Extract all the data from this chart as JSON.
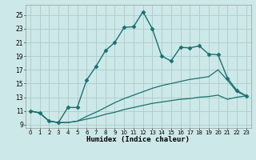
{
  "xlabel": "Humidex (Indice chaleur)",
  "background_color": "#cde8e8",
  "grid_color": "#aacccc",
  "line_color": "#1a7070",
  "xlim": [
    -0.5,
    23.5
  ],
  "ylim": [
    8.5,
    26.5
  ],
  "xticks": [
    0,
    1,
    2,
    3,
    4,
    5,
    6,
    7,
    8,
    9,
    10,
    11,
    12,
    13,
    14,
    15,
    16,
    17,
    18,
    19,
    20,
    21,
    22,
    23
  ],
  "yticks": [
    9,
    11,
    13,
    15,
    17,
    19,
    21,
    23,
    25
  ],
  "series": [
    {
      "x": [
        0,
        1,
        2,
        3,
        4,
        5,
        6,
        7,
        8,
        9,
        10,
        11,
        12,
        13,
        14,
        15,
        16,
        17,
        18,
        19,
        20,
        21,
        22,
        23
      ],
      "y": [
        11,
        10.7,
        9.5,
        9.3,
        11.5,
        11.5,
        15.5,
        17.5,
        19.8,
        21.0,
        23.2,
        23.3,
        25.5,
        23.0,
        19.0,
        18.3,
        20.3,
        20.2,
        20.5,
        19.3,
        19.2,
        15.8,
        14.0,
        13.2
      ],
      "marker": "D",
      "markersize": 2.5,
      "linewidth": 1.0
    },
    {
      "x": [
        0,
        1,
        2,
        3,
        4,
        5,
        6,
        7,
        8,
        9,
        10,
        11,
        12,
        13,
        14,
        15,
        16,
        17,
        18,
        19,
        20,
        21,
        22,
        23
      ],
      "y": [
        11,
        10.7,
        9.5,
        9.3,
        9.3,
        9.5,
        10.2,
        10.8,
        11.5,
        12.2,
        12.8,
        13.3,
        13.8,
        14.3,
        14.7,
        15.0,
        15.3,
        15.6,
        15.8,
        16.0,
        17.0,
        15.5,
        13.8,
        13.2
      ],
      "marker": null,
      "markersize": 0,
      "linewidth": 0.9
    },
    {
      "x": [
        0,
        1,
        2,
        3,
        4,
        5,
        6,
        7,
        8,
        9,
        10,
        11,
        12,
        13,
        14,
        15,
        16,
        17,
        18,
        19,
        20,
        21,
        22,
        23
      ],
      "y": [
        11,
        10.7,
        9.5,
        9.3,
        9.3,
        9.5,
        9.8,
        10.1,
        10.5,
        10.8,
        11.2,
        11.5,
        11.8,
        12.1,
        12.3,
        12.5,
        12.7,
        12.8,
        13.0,
        13.1,
        13.3,
        12.7,
        13.0,
        13.2
      ],
      "marker": null,
      "markersize": 0,
      "linewidth": 0.9
    }
  ]
}
